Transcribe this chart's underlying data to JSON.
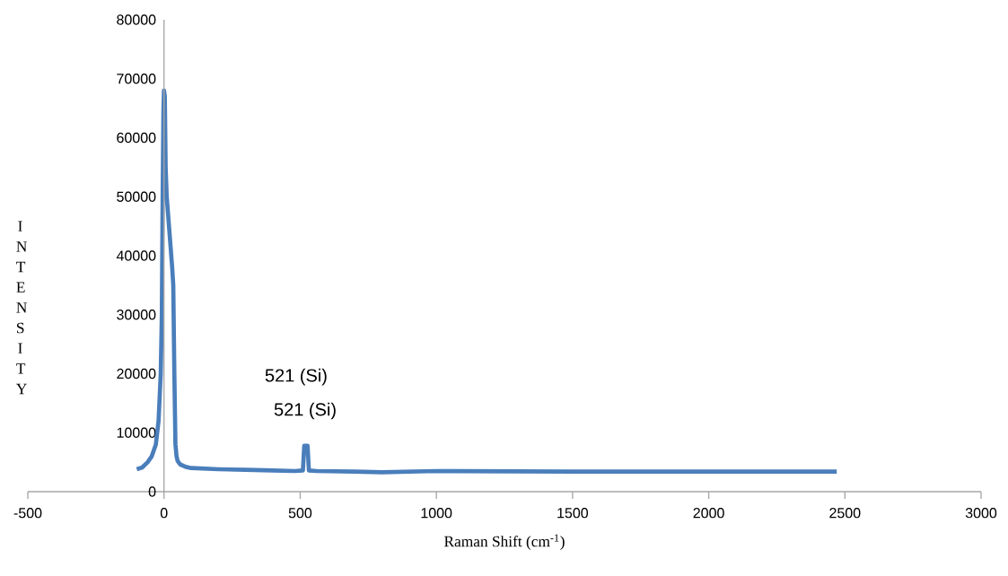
{
  "chart_data": {
    "type": "line",
    "xlabel": "Raman Shift (cm$^{-1}$)",
    "ylabel": "INTENSITY",
    "xlim": [
      -500,
      3000
    ],
    "xticks": [
      -500,
      0,
      500,
      1000,
      1500,
      2000,
      2500,
      3000
    ],
    "ylim": [
      0,
      80000
    ],
    "yticks": [
      0,
      10000,
      20000,
      30000,
      40000,
      50000,
      60000,
      70000,
      80000
    ],
    "grid": false,
    "marker": "none",
    "line_style": "solid",
    "series": [
      {
        "color": "#4a7ebb",
        "x": [
          -100,
          -80,
          -60,
          -45,
          -30,
          -20,
          -12,
          -8,
          -5,
          -2,
          0,
          3,
          6,
          10,
          15,
          20,
          25,
          30,
          34,
          38,
          42,
          46,
          50,
          60,
          80,
          100,
          150,
          200,
          300,
          400,
          480,
          510,
          515,
          521,
          527,
          532,
          560,
          700,
          800,
          1000,
          1500,
          2000,
          2470
        ],
        "values": [
          3800,
          4100,
          5000,
          6000,
          8000,
          12000,
          20000,
          30000,
          50000,
          65000,
          68000,
          67000,
          55000,
          50000,
          47000,
          44000,
          41000,
          38000,
          35000,
          20000,
          8000,
          6000,
          5200,
          4600,
          4200,
          4000,
          3900,
          3800,
          3700,
          3600,
          3500,
          3600,
          7800,
          7800,
          7800,
          3600,
          3500,
          3400,
          3300,
          3500,
          3400,
          3400,
          3400
        ]
      }
    ],
    "annotations": [
      "521 (Si)",
      "521 (Si)"
    ]
  }
}
